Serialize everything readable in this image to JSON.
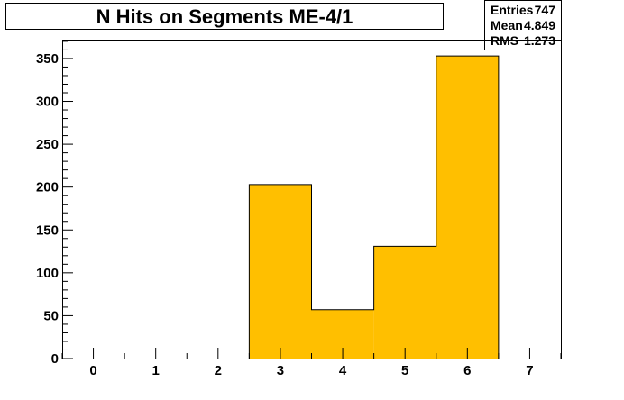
{
  "title": "N Hits on Segments ME-4/1",
  "stats": {
    "entries_label": "Entries",
    "entries_value": "747",
    "mean_label": "Mean",
    "mean_value": "4.849",
    "rms_label": "RMS",
    "rms_value": "1.273"
  },
  "colors": {
    "fill": "#ffbf00",
    "line": "#000000",
    "background": "#ffffff"
  },
  "chart_data": {
    "type": "bar",
    "title": "N Hits on Segments ME-4/1",
    "xlabel": "",
    "ylabel": "",
    "xlim": [
      -0.5,
      7.5
    ],
    "ylim": [
      0,
      372
    ],
    "x_ticks": [
      0,
      1,
      2,
      3,
      4,
      5,
      6,
      7
    ],
    "x_tick_labels": [
      "0",
      "1",
      "2",
      "3",
      "4",
      "5",
      "6",
      "7"
    ],
    "y_ticks": [
      0,
      50,
      100,
      150,
      200,
      250,
      300,
      350
    ],
    "y_tick_labels": [
      "0",
      "50",
      "100",
      "150",
      "200",
      "250",
      "300",
      "350"
    ],
    "bins": [
      {
        "lo": 2.5,
        "hi": 3.5,
        "value": 203
      },
      {
        "lo": 3.5,
        "hi": 4.5,
        "value": 57
      },
      {
        "lo": 4.5,
        "hi": 5.5,
        "value": 131
      },
      {
        "lo": 5.5,
        "hi": 6.5,
        "value": 353
      }
    ],
    "grid": false,
    "legend": "none"
  }
}
